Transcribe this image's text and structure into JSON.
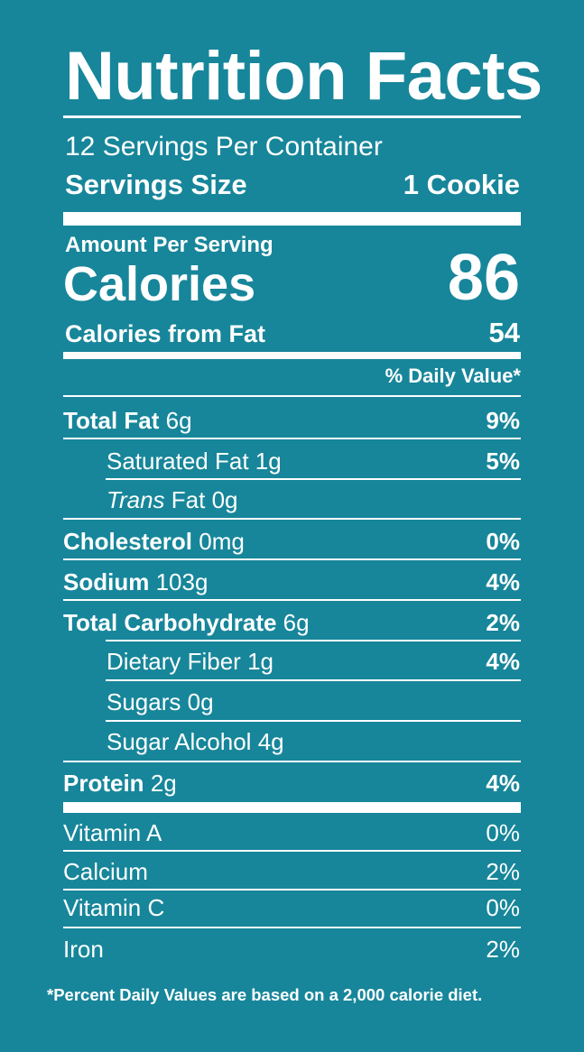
{
  "title": "Nutrition Facts",
  "servings_per_container": "12 Servings Per Container",
  "serving_size": {
    "label": "Servings Size",
    "value": "1 Cookie"
  },
  "amount_per_serving": "Amount Per Serving",
  "calories": {
    "label": "Calories",
    "value": "86"
  },
  "calories_from_fat": {
    "label": "Calories from Fat",
    "value": "54"
  },
  "daily_value_header": "% Daily Value*",
  "nutrients": [
    {
      "name": "Total Fat",
      "amount": "6g",
      "dv": "9%"
    },
    {
      "name": "Saturated Fat",
      "amount": "1g",
      "dv": "5%"
    },
    {
      "name_italic": "Trans",
      "name": "Fat",
      "amount": "0g",
      "dv": ""
    },
    {
      "name": "Cholesterol",
      "amount": "0mg",
      "dv": "0%"
    },
    {
      "name": "Sodium",
      "amount": "103g",
      "dv": "4%"
    },
    {
      "name": "Total Carbohydrate",
      "amount": "6g",
      "dv": "2%"
    },
    {
      "name": "Dietary Fiber",
      "amount": "1g",
      "dv": "4%"
    },
    {
      "name": "Sugars",
      "amount": "0g",
      "dv": ""
    },
    {
      "name": "Sugar Alcohol",
      "amount": "4g",
      "dv": ""
    },
    {
      "name": "Protein",
      "amount": "2g",
      "dv": "4%"
    }
  ],
  "vitamins": [
    {
      "name": "Vitamin A",
      "dv": "0%"
    },
    {
      "name": "Calcium",
      "dv": "2%"
    },
    {
      "name": "Vitamin C",
      "dv": "0%"
    },
    {
      "name": "Iron",
      "dv": "2%"
    }
  ],
  "footnote": "*Percent Daily Values are based on a 2,000 calorie diet.",
  "colors": {
    "background": "#17869a",
    "text": "#ffffff"
  }
}
